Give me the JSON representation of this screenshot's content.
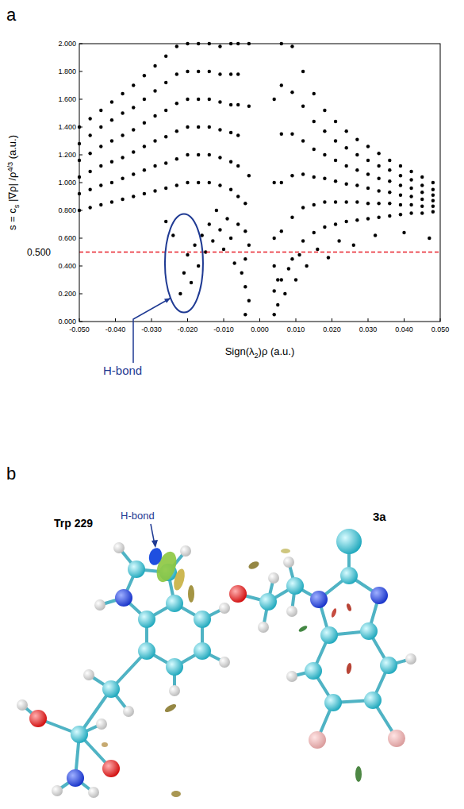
{
  "panel_labels": [
    "a",
    "b"
  ],
  "chart_data": {
    "type": "scatter",
    "x_label": [
      "Sign(λ",
      {
        "sub": "2"
      },
      ")ρ (a.u.)"
    ],
    "y_label": [
      "s = c",
      {
        "sub": "s"
      },
      " |∇ρ| /ρ",
      {
        "sup": "4/3"
      },
      " (a.u.)"
    ],
    "xlim": [
      -0.05,
      0.05
    ],
    "ylim": [
      0,
      2
    ],
    "xticks": [
      {
        "value": -0.05,
        "label": "-0.050"
      },
      {
        "value": -0.04,
        "label": "-0.040"
      },
      {
        "value": -0.03,
        "label": "-0.030"
      },
      {
        "value": -0.02,
        "label": "-0.020"
      },
      {
        "value": -0.01,
        "label": "-0.010"
      },
      {
        "value": 0,
        "label": "0.000"
      },
      {
        "value": 0.01,
        "label": "0.010"
      },
      {
        "value": 0.02,
        "label": "0.020"
      },
      {
        "value": 0.03,
        "label": "0.030"
      },
      {
        "value": 0.04,
        "label": "0.040"
      },
      {
        "value": 0.05,
        "label": "0.050"
      }
    ],
    "yticks": [
      {
        "value": 0,
        "label": "0.000"
      },
      {
        "value": 0.2,
        "label": "0.200"
      },
      {
        "value": 0.4,
        "label": "0.400"
      },
      {
        "value": 0.6,
        "label": "0.600"
      },
      {
        "value": 0.8,
        "label": "0.800"
      },
      {
        "value": 1,
        "label": "1.000"
      },
      {
        "value": 1.2,
        "label": "1.200"
      },
      {
        "value": 1.4,
        "label": "1.400"
      },
      {
        "value": 1.6,
        "label": "1.600"
      },
      {
        "value": 1.8,
        "label": "1.800"
      },
      {
        "value": 2,
        "label": "2.000"
      }
    ],
    "grid": false,
    "color": "#000000",
    "marker": "dot",
    "reference_line": {
      "value": 0.5,
      "label": "0.500",
      "color": "#e8202a",
      "line_style": "dashed"
    },
    "annotations": [
      {
        "text": "H-bond",
        "x": -0.021,
        "y": 0.42,
        "color": "#1f3a93"
      }
    ],
    "x": [
      -0.05,
      -0.05,
      -0.05,
      -0.05,
      -0.05,
      -0.05,
      -0.047,
      -0.047,
      -0.047,
      -0.047,
      -0.047,
      -0.047,
      -0.044,
      -0.044,
      -0.044,
      -0.044,
      -0.044,
      -0.044,
      -0.041,
      -0.041,
      -0.041,
      -0.041,
      -0.041,
      -0.041,
      -0.038,
      -0.038,
      -0.038,
      -0.038,
      -0.038,
      -0.038,
      -0.035,
      -0.035,
      -0.035,
      -0.035,
      -0.035,
      -0.035,
      -0.032,
      -0.032,
      -0.032,
      -0.032,
      -0.032,
      -0.032,
      -0.029,
      -0.029,
      -0.029,
      -0.029,
      -0.029,
      -0.029,
      -0.026,
      -0.026,
      -0.026,
      -0.026,
      -0.026,
      -0.026,
      -0.023,
      -0.023,
      -0.023,
      -0.023,
      -0.023,
      -0.023,
      -0.02,
      -0.02,
      -0.02,
      -0.02,
      -0.02,
      -0.02,
      -0.017,
      -0.017,
      -0.017,
      -0.017,
      -0.017,
      -0.017,
      -0.014,
      -0.014,
      -0.014,
      -0.014,
      -0.014,
      -0.014,
      -0.011,
      -0.011,
      -0.011,
      -0.011,
      -0.011,
      -0.011,
      -0.008,
      -0.008,
      -0.008,
      -0.008,
      -0.008,
      -0.008,
      -0.006,
      -0.006,
      -0.006,
      -0.006,
      -0.006,
      -0.006,
      -0.004,
      -0.004,
      -0.004,
      -0.004,
      -0.004,
      -0.003,
      -0.003,
      -0.003,
      -0.003,
      -0.003,
      -0.022,
      -0.021,
      -0.02,
      -0.019,
      -0.018,
      -0.017,
      -0.016,
      -0.015,
      -0.014,
      -0.013,
      -0.026,
      -0.024,
      -0.012,
      -0.011,
      -0.01,
      -0.009,
      -0.008,
      -0.007,
      -0.006,
      -0.005,
      0.004,
      0.004,
      0.004,
      0.004,
      0.004,
      0.004,
      0.006,
      0.006,
      0.006,
      0.006,
      0.006,
      0.006,
      0.009,
      0.009,
      0.009,
      0.009,
      0.009,
      0.009,
      0.012,
      0.012,
      0.012,
      0.012,
      0.012,
      0.012,
      0.015,
      0.015,
      0.015,
      0.015,
      0.015,
      0.015,
      0.018,
      0.018,
      0.018,
      0.018,
      0.018,
      0.018,
      0.021,
      0.021,
      0.021,
      0.021,
      0.021,
      0.021,
      0.024,
      0.024,
      0.024,
      0.024,
      0.024,
      0.024,
      0.027,
      0.027,
      0.027,
      0.027,
      0.027,
      0.027,
      0.03,
      0.03,
      0.03,
      0.03,
      0.03,
      0.03,
      0.033,
      0.033,
      0.033,
      0.033,
      0.033,
      0.033,
      0.036,
      0.036,
      0.036,
      0.036,
      0.036,
      0.036,
      0.039,
      0.039,
      0.039,
      0.039,
      0.039,
      0.039,
      0.042,
      0.042,
      0.042,
      0.042,
      0.042,
      0.042,
      0.045,
      0.045,
      0.045,
      0.045,
      0.045,
      0.045,
      0.048,
      0.048,
      0.048,
      0.048,
      0.048,
      0.048,
      0.005,
      0.005,
      0.007,
      0.008,
      0.01,
      0.011,
      0.013,
      0.016,
      0.019,
      0.022,
      0.026,
      0.032,
      0.04,
      0.047
    ],
    "values": [
      0.8,
      0.92,
      1.04,
      1.16,
      1.28,
      1.4,
      0.82,
      0.95,
      1.08,
      1.21,
      1.34,
      1.46,
      0.84,
      0.98,
      1.12,
      1.26,
      1.4,
      1.52,
      0.86,
      1.0,
      1.15,
      1.3,
      1.45,
      1.58,
      0.88,
      1.03,
      1.18,
      1.34,
      1.5,
      1.64,
      0.9,
      1.06,
      1.22,
      1.38,
      1.54,
      1.7,
      0.92,
      1.09,
      1.26,
      1.43,
      1.6,
      1.77,
      0.94,
      1.12,
      1.3,
      1.48,
      1.66,
      1.84,
      0.96,
      1.14,
      1.33,
      1.52,
      1.72,
      1.91,
      0.98,
      1.17,
      1.37,
      1.57,
      1.78,
      1.98,
      1.0,
      1.2,
      1.4,
      1.6,
      1.8,
      2.0,
      1.0,
      1.2,
      1.4,
      1.6,
      1.8,
      2.0,
      1.0,
      1.2,
      1.4,
      1.6,
      1.8,
      2.0,
      0.98,
      1.18,
      1.38,
      1.58,
      1.78,
      1.98,
      0.95,
      1.15,
      1.36,
      1.56,
      1.78,
      2.0,
      0.9,
      1.12,
      1.34,
      1.56,
      1.78,
      2.0,
      0.05,
      0.25,
      0.45,
      0.65,
      0.85,
      0.15,
      0.55,
      1.05,
      1.55,
      2.0,
      0.2,
      0.35,
      0.48,
      0.28,
      0.55,
      0.4,
      0.62,
      0.5,
      0.7,
      0.58,
      0.72,
      0.62,
      0.8,
      0.66,
      0.52,
      0.74,
      0.6,
      0.42,
      0.7,
      0.35,
      0.05,
      0.22,
      0.4,
      0.6,
      1.0,
      1.6,
      0.3,
      0.65,
      1.0,
      1.35,
      1.7,
      2.0,
      0.45,
      0.75,
      1.05,
      1.35,
      1.65,
      1.98,
      0.58,
      0.82,
      1.06,
      1.3,
      1.55,
      1.8,
      0.64,
      0.84,
      1.04,
      1.24,
      1.44,
      1.64,
      0.68,
      0.86,
      1.03,
      1.2,
      1.37,
      1.52,
      0.7,
      0.86,
      1.01,
      1.16,
      1.3,
      1.44,
      0.72,
      0.86,
      0.99,
      1.12,
      1.25,
      1.37,
      0.73,
      0.86,
      0.98,
      1.09,
      1.2,
      1.31,
      0.74,
      0.85,
      0.96,
      1.06,
      1.16,
      1.26,
      0.75,
      0.85,
      0.94,
      1.03,
      1.12,
      1.21,
      0.76,
      0.85,
      0.93,
      1.01,
      1.09,
      1.16,
      0.77,
      0.84,
      0.91,
      0.98,
      1.05,
      1.12,
      0.78,
      0.84,
      0.9,
      0.96,
      1.02,
      1.08,
      0.78,
      0.83,
      0.88,
      0.93,
      0.98,
      1.04,
      0.79,
      0.83,
      0.87,
      0.91,
      0.95,
      1.0,
      0.12,
      0.3,
      0.2,
      0.38,
      0.3,
      0.48,
      0.4,
      0.52,
      0.46,
      0.58,
      0.55,
      0.62,
      0.64,
      0.6
    ]
  },
  "diagram": {
    "labels": [
      {
        "text": "Trp 229"
      },
      {
        "text": "3a"
      },
      {
        "text": "H-bond"
      }
    ]
  }
}
